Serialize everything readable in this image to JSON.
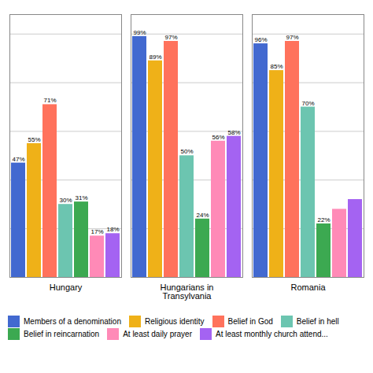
{
  "chart_data": {
    "type": "bar",
    "categories": [
      "Hungary",
      "Hungarians in Transylvania",
      "Romania"
    ],
    "series": [
      {
        "name": "Members of a denomination",
        "values": [
          47,
          99,
          96
        ],
        "value_labels": [
          "47%",
          "99%",
          "96%"
        ]
      },
      {
        "name": "Religious identity",
        "values": [
          55,
          89,
          85
        ],
        "value_labels": [
          "55%",
          "89%",
          "85%"
        ]
      },
      {
        "name": "Belief in God",
        "values": [
          71,
          97,
          97
        ],
        "value_labels": [
          "71%",
          "97%",
          "97%"
        ]
      },
      {
        "name": "Belief in hell",
        "values": [
          30,
          50,
          70
        ],
        "value_labels": [
          "30%",
          "50%",
          "70%"
        ]
      },
      {
        "name": "Belief in reincarnation",
        "values": [
          31,
          24,
          22
        ],
        "value_labels": [
          "31%",
          "24%",
          "22%"
        ]
      },
      {
        "name": "At least daily prayer",
        "values": [
          17,
          56,
          28
        ],
        "value_labels": [
          "17%",
          "56%",
          null
        ]
      },
      {
        "name": "At least monthly church attend...",
        "values": [
          18,
          58,
          32
        ],
        "value_labels": [
          "18%",
          "58%",
          null
        ]
      }
    ],
    "ylim": [
      0,
      108
    ],
    "yticks": [
      0,
      20,
      40,
      60,
      80,
      100
    ],
    "grid": true,
    "legend": "bottom",
    "data_labels": true,
    "tick_labels": "x"
  }
}
